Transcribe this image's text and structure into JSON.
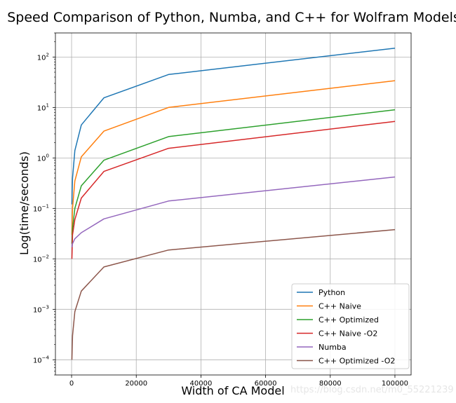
{
  "chart_data": {
    "type": "line",
    "title": "Speed Comparison of Python, Numba, and C++ for Wolfram Models",
    "xlabel": "Width of CA Model",
    "ylabel": "Log(time/seconds)",
    "yscale": "log",
    "xlim": [
      -5000,
      105000
    ],
    "ylim": [
      5e-05,
      300
    ],
    "x_ticks": [
      0,
      20000,
      40000,
      60000,
      80000,
      100000
    ],
    "x_tick_labels": [
      "0",
      "20000",
      "40000",
      "60000",
      "80000",
      "100000"
    ],
    "y_ticks": [
      0.0001,
      0.001,
      0.01,
      0.1,
      1,
      10,
      100
    ],
    "y_tick_labels": [
      {
        "base": "10",
        "exp": "−4"
      },
      {
        "base": "10",
        "exp": "−3"
      },
      {
        "base": "10",
        "exp": "−2"
      },
      {
        "base": "10",
        "exp": "−1"
      },
      {
        "base": "10",
        "exp": "0"
      },
      {
        "base": "10",
        "exp": "1"
      },
      {
        "base": "10",
        "exp": "2"
      }
    ],
    "grid": true,
    "legend_position": "lower-right",
    "x": [
      100,
      300,
      1000,
      3000,
      10000,
      30000,
      100000
    ],
    "series": [
      {
        "name": "Python",
        "color": "#1f77b4",
        "values": [
          0.12,
          0.4,
          1.4,
          4.5,
          15.5,
          45,
          150
        ]
      },
      {
        "name": "C++ Naive",
        "color": "#ff7f0e",
        "values": [
          0.03,
          0.1,
          0.35,
          1.05,
          3.4,
          10,
          34
        ]
      },
      {
        "name": "C++ Optimized",
        "color": "#2ca02c",
        "values": [
          0.02,
          0.04,
          0.1,
          0.28,
          0.9,
          2.65,
          9
        ]
      },
      {
        "name": "C++ Naive -O2",
        "color": "#d62728",
        "values": [
          0.01,
          0.03,
          0.06,
          0.16,
          0.54,
          1.55,
          5.3
        ]
      },
      {
        "name": "Numba",
        "color": "#9467bd",
        "values": [
          0.017,
          0.02,
          0.025,
          0.033,
          0.062,
          0.14,
          0.42
        ]
      },
      {
        "name": "C++ Optimized -O2",
        "color": "#8c564b",
        "values": [
          0.0001,
          0.0003,
          0.0009,
          0.0023,
          0.0069,
          0.015,
          0.038
        ]
      }
    ]
  },
  "watermark": "https://blog.csdn.net/m0_55221239"
}
